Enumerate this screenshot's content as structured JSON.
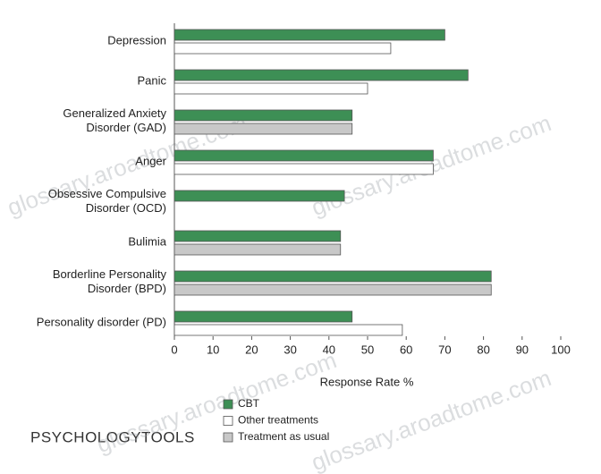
{
  "chart_data": {
    "type": "barh",
    "categories": [
      "Depression",
      "Panic",
      "Generalized Anxiety\nDisorder (GAD)",
      "Anger",
      "Obsessive Compulsive\nDisorder (OCD)",
      "Bulimia",
      "Borderline Personality\nDisorder (BPD)",
      "Personality disorder (PD)"
    ],
    "series": [
      {
        "name": "CBT",
        "color": "#3d8f55",
        "values": [
          70,
          76,
          46,
          67,
          44,
          43,
          82,
          46
        ]
      },
      {
        "name": "Other treatments",
        "color": "#ffffff",
        "values": [
          56,
          50,
          null,
          67,
          null,
          null,
          null,
          59
        ]
      },
      {
        "name": "Treatment as usual",
        "color": "#c8c8c8",
        "values": [
          null,
          null,
          46,
          null,
          null,
          43,
          82,
          null
        ]
      }
    ],
    "xlabel": "Response Rate %",
    "xlim": [
      0,
      100
    ],
    "xticks": [
      0,
      10,
      20,
      30,
      40,
      50,
      60,
      70,
      80,
      90,
      100
    ],
    "logo": "PSYCHOLOGYTOOLS",
    "watermark": "glossary.aroadtome.com"
  }
}
